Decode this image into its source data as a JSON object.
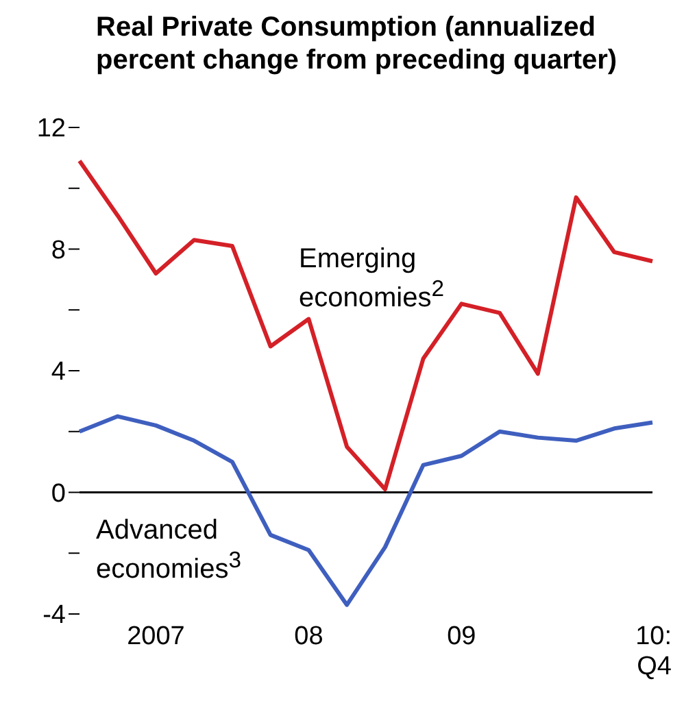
{
  "chart_data": {
    "type": "line",
    "title": "Real Private Consumption (annualized percent change from preceding quarter)",
    "categories": [
      null,
      null,
      "2007",
      null,
      null,
      null,
      "08",
      null,
      null,
      null,
      "09",
      null,
      null,
      null,
      null,
      "10: Q4"
    ],
    "series": [
      {
        "name": "Emerging economies$^{2}$",
        "color": "#d42027",
        "values": [
          10.9,
          9.1,
          7.2,
          8.3,
          8.1,
          4.8,
          5.7,
          1.5,
          0.1,
          4.4,
          6.2,
          5.9,
          3.9,
          9.7,
          7.9,
          7.6
        ]
      },
      {
        "name": "Advanced economies$^{3}$",
        "color": "#3f5fbf",
        "values": [
          2.0,
          2.5,
          2.2,
          1.7,
          1.0,
          -1.4,
          -1.9,
          -3.7,
          -1.8,
          0.9,
          1.2,
          2.0,
          1.8,
          1.7,
          2.1,
          2.3
        ]
      }
    ],
    "ylim": [
      -4,
      12
    ],
    "yticks": [
      -4,
      {
        "value": -2,
        "label": null
      },
      0,
      {
        "value": 2,
        "label": null
      },
      4,
      {
        "value": 6,
        "label": null
      },
      8,
      {
        "value": 10,
        "label": null
      },
      12
    ],
    "ref_lines": [
      {
        "axis": "y",
        "value": 0,
        "color": "#000000"
      }
    ],
    "grid": false,
    "legend": false,
    "marker": "none",
    "line_style": "solid"
  }
}
